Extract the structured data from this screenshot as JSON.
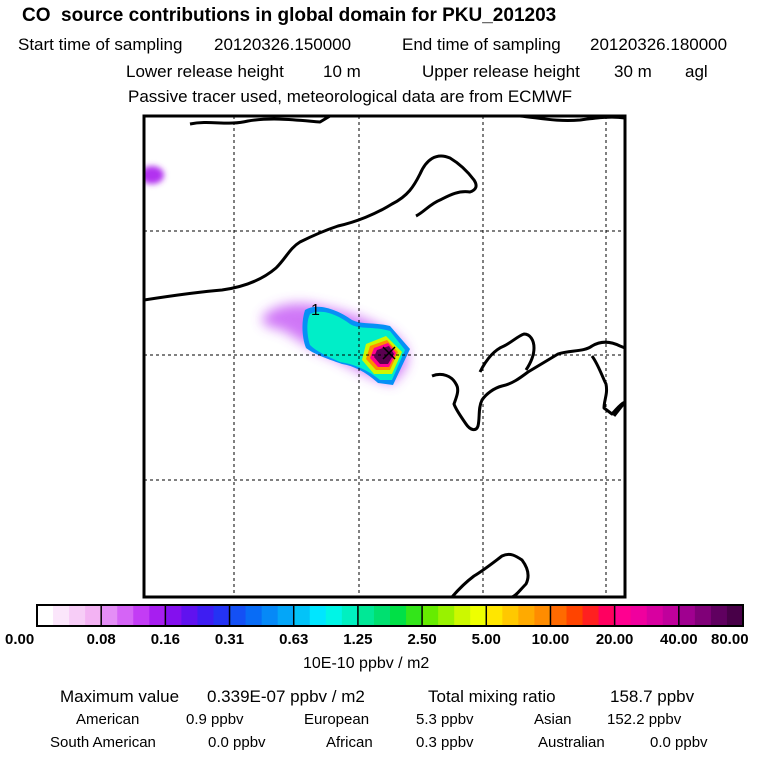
{
  "header": {
    "title": "CO  source contributions in global domain for PKU_201203",
    "start_label": "Start time of sampling",
    "start_value": "20120326.150000",
    "end_label": "End time of sampling",
    "end_value": "20120326.180000",
    "lower_label": "Lower release height",
    "lower_value": "10 m",
    "upper_label": "Upper release height",
    "upper_value": "30 m",
    "upper_unit": "agl",
    "note": "Passive tracer used, meteorological data are from ECMWF"
  },
  "map": {
    "site_marker": "1",
    "release_point_marker": "x-marker-icon"
  },
  "colorbar": {
    "ticks": [
      "0.00",
      "0.08",
      "0.16",
      "0.31",
      "0.63",
      "1.25",
      "2.50",
      "5.00",
      "10.00",
      "20.00",
      "40.00",
      "80.00"
    ],
    "units": "10E-10 ppbv / m2",
    "colors": [
      "#ffffff",
      "#fbe6fb",
      "#f7cdf7",
      "#f3b3f3",
      "#e48ef6",
      "#d564f6",
      "#c33cf5",
      "#a71ef0",
      "#8410ee",
      "#6012ef",
      "#3e1df2",
      "#2433f4",
      "#1450f5",
      "#086cf6",
      "#0689f7",
      "#04a6f8",
      "#03c3f8",
      "#00e6ff",
      "#00f5e6",
      "#00f0c0",
      "#00e896",
      "#00e070",
      "#00e046",
      "#33e51a",
      "#66ec00",
      "#99f200",
      "#ccf800",
      "#eeff00",
      "#ffe600",
      "#ffc800",
      "#ffaa00",
      "#ff8c00",
      "#ff6a00",
      "#ff4400",
      "#ff2020",
      "#ff0060",
      "#ff0090",
      "#f0009e",
      "#d800a0",
      "#c0009c",
      "#a00090",
      "#800078",
      "#600060",
      "#480048"
    ]
  },
  "stats": {
    "max_label": "Maximum value",
    "max_value": "0.339E-07 ppbv / m2",
    "total_label": "Total mixing ratio",
    "total_value": "158.7 ppbv"
  },
  "contributions": [
    {
      "label": "American",
      "value": "0.9 ppbv"
    },
    {
      "label": "European",
      "value": "5.3 ppbv"
    },
    {
      "label": "Asian",
      "value": "152.2 ppbv"
    },
    {
      "label": "South American",
      "value": "0.0 ppbv"
    },
    {
      "label": "African",
      "value": "0.3 ppbv"
    },
    {
      "label": "Australian",
      "value": "0.0 ppbv"
    }
  ]
}
